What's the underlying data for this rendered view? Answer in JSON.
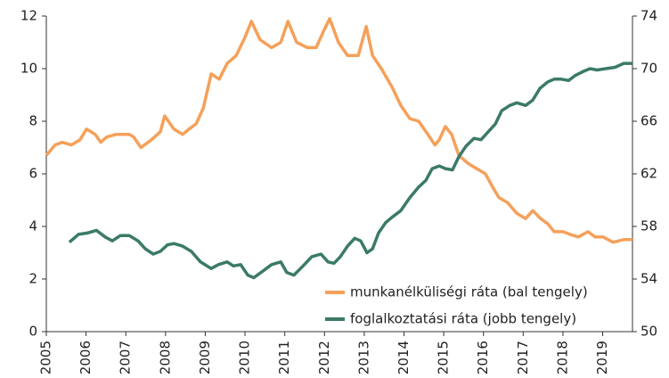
{
  "chart_data": {
    "type": "line",
    "series": [
      {
        "name": "munkanélküliségi ráta (bal tengely)",
        "color": "#f5a05a",
        "axis": "y",
        "x": [
          2005.0,
          2005.22,
          2005.4,
          2005.63,
          2005.85,
          2006.01,
          2006.23,
          2006.37,
          2006.52,
          2006.75,
          2007.09,
          2007.2,
          2007.38,
          2007.65,
          2007.87,
          2007.98,
          2008.21,
          2008.43,
          2008.59,
          2008.77,
          2008.95,
          2009.15,
          2009.35,
          2009.55,
          2009.78,
          2010.0,
          2010.16,
          2010.38,
          2010.67,
          2010.9,
          2011.08,
          2011.3,
          2011.57,
          2011.79,
          2011.97,
          2012.13,
          2012.35,
          2012.58,
          2012.85,
          2013.05,
          2013.21,
          2013.43,
          2013.7,
          2013.92,
          2014.15,
          2014.37,
          2014.6,
          2014.78,
          2014.89,
          2015.04,
          2015.2,
          2015.38,
          2015.61,
          2015.83,
          2016.05,
          2016.23,
          2016.39,
          2016.61,
          2016.84,
          2017.06,
          2017.24,
          2017.44,
          2017.62,
          2017.78,
          2018.0,
          2018.18,
          2018.39,
          2018.63,
          2018.81,
          2019.01,
          2019.26,
          2019.53,
          2019.75
        ],
        "values": [
          6.7,
          7.1,
          7.2,
          7.1,
          7.3,
          7.7,
          7.5,
          7.2,
          7.4,
          7.5,
          7.5,
          7.4,
          7.0,
          7.3,
          7.6,
          8.2,
          7.7,
          7.5,
          7.7,
          7.9,
          8.5,
          9.8,
          9.6,
          10.2,
          10.5,
          11.2,
          11.8,
          11.1,
          10.8,
          11.0,
          11.8,
          11.0,
          10.8,
          10.8,
          11.4,
          11.9,
          11.0,
          10.5,
          10.5,
          11.6,
          10.5,
          10.0,
          9.3,
          8.6,
          8.1,
          8.0,
          7.5,
          7.1,
          7.3,
          7.8,
          7.5,
          6.7,
          6.4,
          6.2,
          6.0,
          5.5,
          5.1,
          4.9,
          4.5,
          4.3,
          4.6,
          4.3,
          4.1,
          3.8,
          3.8,
          3.7,
          3.6,
          3.8,
          3.6,
          3.6,
          3.4,
          3.5,
          3.5
        ]
      },
      {
        "name": "foglalkoztatási ráta (jobb tengely)",
        "color": "#3b7a68",
        "axis": "y2",
        "x": [
          2005.58,
          2005.81,
          2006.03,
          2006.26,
          2006.48,
          2006.66,
          2006.86,
          2007.09,
          2007.31,
          2007.49,
          2007.69,
          2007.87,
          2008.05,
          2008.21,
          2008.43,
          2008.65,
          2008.88,
          2009.15,
          2009.33,
          2009.55,
          2009.71,
          2009.89,
          2010.07,
          2010.22,
          2010.45,
          2010.67,
          2010.9,
          2011.05,
          2011.23,
          2011.46,
          2011.68,
          2011.91,
          2012.09,
          2012.24,
          2012.4,
          2012.58,
          2012.76,
          2012.91,
          2013.07,
          2013.21,
          2013.36,
          2013.54,
          2013.7,
          2013.92,
          2014.15,
          2014.37,
          2014.55,
          2014.71,
          2014.89,
          2015.04,
          2015.22,
          2015.38,
          2015.56,
          2015.76,
          2015.94,
          2016.12,
          2016.3,
          2016.46,
          2016.66,
          2016.84,
          2017.06,
          2017.24,
          2017.42,
          2017.62,
          2017.78,
          2017.96,
          2018.14,
          2018.32,
          2018.52,
          2018.68,
          2018.86,
          2019.08,
          2019.31,
          2019.53,
          2019.75
        ],
        "values": [
          56.8,
          57.4,
          57.5,
          57.7,
          57.2,
          56.9,
          57.3,
          57.3,
          56.9,
          56.3,
          55.9,
          56.1,
          56.6,
          56.7,
          56.5,
          56.1,
          55.3,
          54.8,
          55.1,
          55.3,
          55.0,
          55.1,
          54.3,
          54.1,
          54.6,
          55.1,
          55.3,
          54.5,
          54.3,
          55.0,
          55.7,
          55.9,
          55.3,
          55.2,
          55.7,
          56.5,
          57.1,
          56.9,
          56.0,
          56.3,
          57.5,
          58.3,
          58.7,
          59.2,
          60.2,
          61.0,
          61.5,
          62.4,
          62.6,
          62.4,
          62.3,
          63.3,
          64.1,
          64.7,
          64.6,
          65.2,
          65.8,
          66.8,
          67.2,
          67.4,
          67.2,
          67.6,
          68.5,
          69.0,
          69.2,
          69.2,
          69.1,
          69.5,
          69.8,
          70.0,
          69.9,
          70.0,
          70.1,
          70.4,
          70.4
        ]
      }
    ],
    "xlim": [
      2005,
      2019.75
    ],
    "xticks": [
      2005,
      2006,
      2007,
      2008,
      2009,
      2010,
      2011,
      2012,
      2013,
      2014,
      2015,
      2016,
      2017,
      2018,
      2019
    ],
    "ylim": [
      0,
      12
    ],
    "yticks": [
      0,
      2,
      4,
      6,
      8,
      10,
      12
    ],
    "y2lim": [
      50,
      74
    ],
    "y2ticks": [
      50,
      54,
      58,
      62,
      66,
      70,
      74
    ],
    "grid": false,
    "legend": "lower right"
  }
}
